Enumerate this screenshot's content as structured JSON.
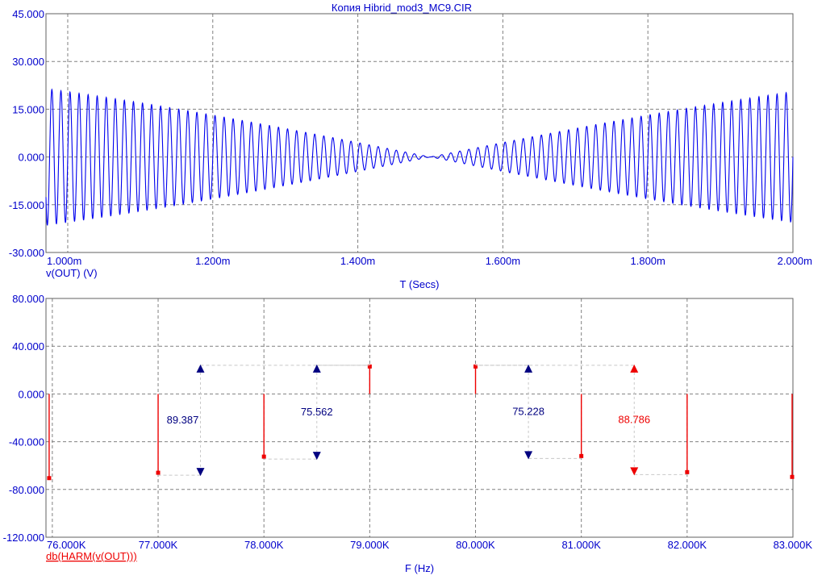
{
  "colors": {
    "axis_text": "#0000cc",
    "trace_top": "#0000ee",
    "trace_bottom": "#ee0000",
    "marker_blue": "#000080",
    "grid": "#808080"
  },
  "chart_data": [
    {
      "type": "line",
      "title": "Копия Hibrid_mod3_MC9.CIR",
      "xlabel": "T (Secs)",
      "series_label": "v(OUT) (V)",
      "xlim": [
        0.00097,
        0.002
      ],
      "ylim": [
        -30,
        45
      ],
      "x_ticks": [
        {
          "value": 0.001,
          "label": "1.000m"
        },
        {
          "value": 0.0012,
          "label": "1.200m"
        },
        {
          "value": 0.0014,
          "label": "1.400m"
        },
        {
          "value": 0.0016,
          "label": "1.600m"
        },
        {
          "value": 0.0018,
          "label": "1.800m"
        },
        {
          "value": 0.002,
          "label": "2.000m"
        }
      ],
      "y_ticks": [
        {
          "value": 45,
          "label": "45.000"
        },
        {
          "value": 30,
          "label": "30.000"
        },
        {
          "value": 15,
          "label": "15.000"
        },
        {
          "value": 0,
          "label": "0.000"
        },
        {
          "value": -15,
          "label": "-15.000"
        },
        {
          "value": -30,
          "label": "-30.000"
        }
      ],
      "grid": true,
      "signal": {
        "carrier_hz": 80000,
        "modulation_hz": 500,
        "peak_amplitude": 29,
        "zero_time": 0.0015
      }
    },
    {
      "type": "bar",
      "xlabel": "F (Hz)",
      "series_label": "db(HARM(v(OUT)))",
      "xlim": [
        75940,
        83000
      ],
      "ylim": [
        -120,
        80
      ],
      "x_ticks": [
        {
          "value": 76000,
          "label": "76.000K"
        },
        {
          "value": 77000,
          "label": "77.000K"
        },
        {
          "value": 78000,
          "label": "78.000K"
        },
        {
          "value": 79000,
          "label": "79.000K"
        },
        {
          "value": 80000,
          "label": "80.000K"
        },
        {
          "value": 81000,
          "label": "81.000K"
        },
        {
          "value": 82000,
          "label": "82.000K"
        },
        {
          "value": 83000,
          "label": "83.000K"
        }
      ],
      "y_ticks": [
        {
          "value": 80,
          "label": "80.000"
        },
        {
          "value": 40,
          "label": "40.000"
        },
        {
          "value": 0,
          "label": "0.000"
        },
        {
          "value": -40,
          "label": "-40.000"
        },
        {
          "value": -80,
          "label": "-80.000"
        },
        {
          "value": -120,
          "label": "-120.000"
        }
      ],
      "grid": true,
      "spectral_lines": [
        {
          "freq": 75970,
          "db": -70.5
        },
        {
          "freq": 77000,
          "db": -66.0
        },
        {
          "freq": 78000,
          "db": -52.5
        },
        {
          "freq": 79000,
          "db": 23.0
        },
        {
          "freq": 80000,
          "db": 23.0
        },
        {
          "freq": 81000,
          "db": -52.0
        },
        {
          "freq": 82000,
          "db": -65.5
        },
        {
          "freq": 83000,
          "db": -69.5
        }
      ],
      "measurements": [
        {
          "x": 77400,
          "y_top": 22.0,
          "y_bottom": -66.0,
          "label": "89.387",
          "color": "#000080"
        },
        {
          "x": 78500,
          "y_top": 22.0,
          "y_bottom": -52.5,
          "label": "75.562",
          "color": "#000080"
        },
        {
          "x": 80500,
          "y_top": 22.0,
          "y_bottom": -52.0,
          "label": "75.228",
          "color": "#000080"
        },
        {
          "x": 81500,
          "y_top": 22.0,
          "y_bottom": -65.5,
          "label": "88.786",
          "color": "#ee0000"
        }
      ]
    }
  ]
}
